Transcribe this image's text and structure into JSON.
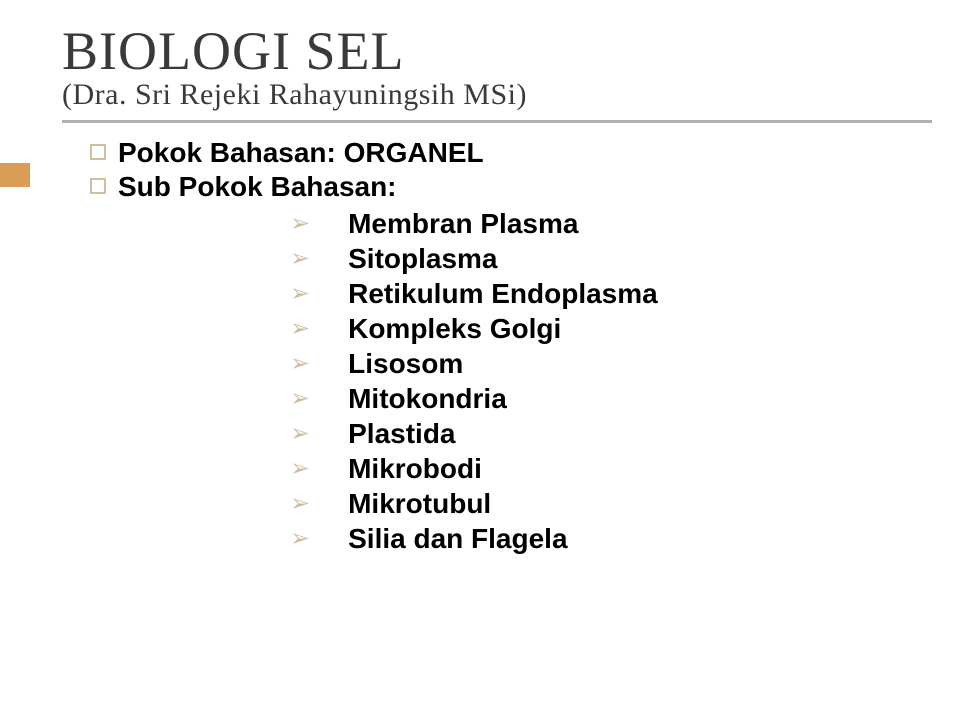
{
  "title": {
    "main": "BIOLOGI SEL",
    "subtitle": "(Dra. Sri Rejeki Rahayuningsih MSi)"
  },
  "colors": {
    "accent_bar": "#d99d55",
    "underline": "#b0b0b0",
    "square_bullet_border": "#cfbfa0",
    "arrow_bullet": "#cfbfa0",
    "title_text": "#3a3a3a",
    "body_text": "#000000",
    "background": "#ffffff"
  },
  "typography": {
    "title_main_fontsize": 54,
    "title_sub_fontsize": 30,
    "body_fontsize": 28,
    "body_weight": 700
  },
  "topics": [
    {
      "label": "Pokok Bahasan:  ORGANEL"
    },
    {
      "label": "Sub Pokok Bahasan:"
    }
  ],
  "sub_items": [
    "Membran Plasma",
    "Sitoplasma",
    "Retikulum Endoplasma",
    "Kompleks Golgi",
    "Lisosom",
    "Mitokondria",
    "Plastida",
    "Mikrobodi",
    "Mikrotubul",
    "Silia dan Flagela"
  ]
}
